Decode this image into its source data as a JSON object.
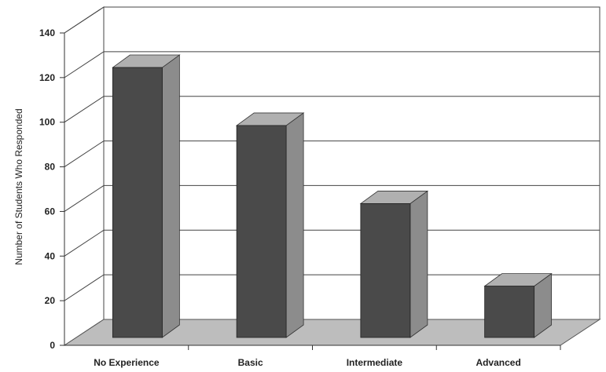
{
  "chart_data": {
    "type": "bar",
    "style": "3d",
    "categories": [
      "No Experience",
      "Basic",
      "Intermediate",
      "Advanced"
    ],
    "values": [
      121,
      95,
      60,
      23
    ],
    "title": "",
    "xlabel": "",
    "ylabel": "Number of Students Who Responded",
    "ylim": [
      0,
      140
    ],
    "yticks": [
      0,
      20,
      40,
      60,
      80,
      100,
      120,
      140
    ],
    "grid": true,
    "legend": "none",
    "colors": {
      "bar_front": "#4a4a4a",
      "bar_side": "#8c8c8c",
      "bar_top": "#b0b0b0",
      "floor": "#bdbdbd",
      "grid": "#444444"
    }
  }
}
